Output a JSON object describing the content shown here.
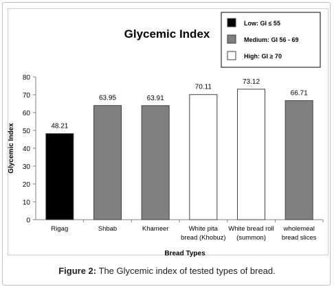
{
  "caption": {
    "label": "Figure 2:",
    "text": "The Glycemic index of tested types of bread."
  },
  "chart_data": {
    "type": "bar",
    "title": "Glycemic Index",
    "xlabel": "Bread Types",
    "ylabel": "Glycemic Index",
    "ylim": [
      0,
      80
    ],
    "yticks": [
      0,
      10,
      20,
      30,
      40,
      50,
      60,
      70,
      80
    ],
    "grid": false,
    "legend_position": "top-right",
    "categories": [
      [
        "Rigag"
      ],
      [
        "Shbab"
      ],
      [
        "Khameer"
      ],
      [
        "White pita",
        "bread (Khobuz)"
      ],
      [
        "White bread roll",
        "(summon)"
      ],
      [
        "wholemeal",
        "bread slices"
      ]
    ],
    "values": [
      48.21,
      63.95,
      63.91,
      70.11,
      73.12,
      66.71
    ],
    "data_labels": [
      "48.21",
      "63.95",
      "63.91",
      "70.11",
      "73.12",
      "66.71"
    ],
    "bar_classes": [
      "low",
      "medium",
      "medium",
      "high",
      "high",
      "medium"
    ],
    "legend": [
      {
        "key": "low",
        "label": "Low:  GI ≤ 55",
        "color": "#000000"
      },
      {
        "key": "medium",
        "label": "Medium:  GI 56 - 69",
        "color": "#808080"
      },
      {
        "key": "high",
        "label": "High:  GI ≥ 70",
        "color": "#ffffff"
      }
    ]
  }
}
